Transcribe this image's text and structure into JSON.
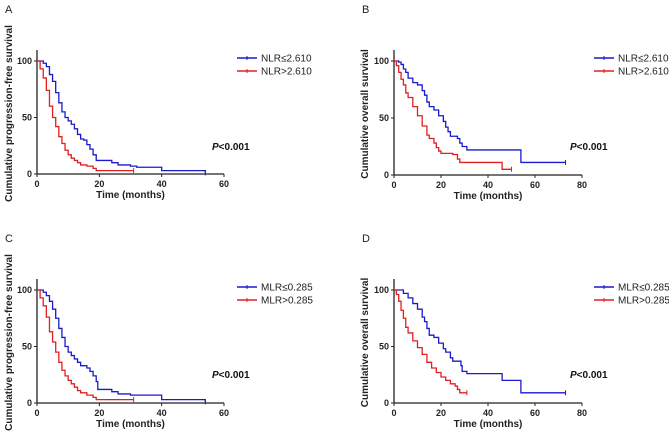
{
  "chart_data": [
    {
      "type": "line",
      "panel_label": "A",
      "xlabel": "Time (months)",
      "ylabel": "Cumulative progression-free survival",
      "xlim": [
        0,
        60
      ],
      "xticks": [
        0,
        20,
        40,
        60
      ],
      "ylim": [
        0,
        100
      ],
      "yticks": [
        0,
        50,
        100
      ],
      "p_value": {
        "prefix": "P",
        "text": "<0.001"
      },
      "legend_position": "top-right",
      "series": [
        {
          "name": "NLR≤2.610",
          "color": "#1a1acc",
          "steps": [
            [
              0,
              100
            ],
            [
              2,
              98
            ],
            [
              3,
              95
            ],
            [
              4,
              88
            ],
            [
              5,
              82
            ],
            [
              6,
              72
            ],
            [
              7,
              63
            ],
            [
              8,
              55
            ],
            [
              9,
              50
            ],
            [
              10,
              47
            ],
            [
              11,
              44
            ],
            [
              12,
              40
            ],
            [
              13,
              35
            ],
            [
              14,
              31
            ],
            [
              15,
              30
            ],
            [
              16,
              26
            ],
            [
              17,
              22
            ],
            [
              18,
              17
            ],
            [
              19,
              12
            ],
            [
              22,
              12
            ],
            [
              24,
              10
            ],
            [
              26,
              8
            ],
            [
              30,
              7
            ],
            [
              32,
              6
            ],
            [
              39,
              6
            ],
            [
              40,
              3
            ],
            [
              54,
              3
            ],
            [
              54,
              1
            ]
          ]
        },
        {
          "name": "NLR>2.610",
          "color": "#e02020",
          "steps": [
            [
              0,
              100
            ],
            [
              1,
              93
            ],
            [
              2,
              85
            ],
            [
              3,
              74
            ],
            [
              4,
              60
            ],
            [
              5,
              50
            ],
            [
              6,
              42
            ],
            [
              7,
              33
            ],
            [
              8,
              27
            ],
            [
              9,
              21
            ],
            [
              10,
              17
            ],
            [
              11,
              14
            ],
            [
              12,
              12
            ],
            [
              13,
              10
            ],
            [
              14,
              8
            ],
            [
              16,
              7
            ],
            [
              18,
              5
            ],
            [
              19,
              3
            ],
            [
              31,
              3
            ]
          ]
        }
      ]
    },
    {
      "type": "line",
      "panel_label": "B",
      "xlabel": "Time (months)",
      "ylabel": "Cumulative overall survival",
      "xlim": [
        0,
        80
      ],
      "xticks": [
        0,
        20,
        40,
        60,
        80
      ],
      "ylim": [
        0,
        100
      ],
      "yticks": [
        0,
        50,
        100
      ],
      "p_value": {
        "prefix": "P",
        "text": "<0.001"
      },
      "legend_position": "top-right",
      "series": [
        {
          "name": "NLR≤2.610",
          "color": "#1a1acc",
          "steps": [
            [
              0,
              100
            ],
            [
              2,
              99
            ],
            [
              3,
              97
            ],
            [
              4,
              93
            ],
            [
              5,
              90
            ],
            [
              6,
              85
            ],
            [
              8,
              81
            ],
            [
              10,
              79
            ],
            [
              12,
              74
            ],
            [
              13,
              70
            ],
            [
              14,
              64
            ],
            [
              15,
              60
            ],
            [
              17,
              57
            ],
            [
              19,
              52
            ],
            [
              21,
              47
            ],
            [
              22,
              42
            ],
            [
              23,
              38
            ],
            [
              24,
              34
            ],
            [
              27,
              32
            ],
            [
              28,
              28
            ],
            [
              29,
              25
            ],
            [
              31,
              22
            ],
            [
              54,
              22
            ],
            [
              54,
              11
            ],
            [
              73,
              11
            ]
          ]
        },
        {
          "name": "NLR>2.610",
          "color": "#e02020",
          "steps": [
            [
              0,
              100
            ],
            [
              1,
              96
            ],
            [
              2,
              90
            ],
            [
              3,
              84
            ],
            [
              4,
              79
            ],
            [
              5,
              72
            ],
            [
              6,
              68
            ],
            [
              8,
              60
            ],
            [
              10,
              52
            ],
            [
              12,
              43
            ],
            [
              14,
              35
            ],
            [
              15,
              32
            ],
            [
              17,
              28
            ],
            [
              18,
              24
            ],
            [
              19,
              21
            ],
            [
              20,
              19
            ],
            [
              25,
              18
            ],
            [
              27,
              14
            ],
            [
              28,
              11
            ],
            [
              46,
              11
            ],
            [
              46,
              5
            ],
            [
              50,
              5
            ]
          ]
        }
      ]
    },
    {
      "type": "line",
      "panel_label": "C",
      "xlabel": "Time (months)",
      "ylabel": "Cumulative progression-free survival",
      "xlim": [
        0,
        60
      ],
      "xticks": [
        0,
        20,
        40,
        60
      ],
      "ylim": [
        0,
        100
      ],
      "yticks": [
        0,
        50,
        100
      ],
      "p_value": {
        "prefix": "P",
        "text": "<0.001"
      },
      "legend_position": "top-right",
      "series": [
        {
          "name": "MLR≤0.285",
          "color": "#1a1acc",
          "steps": [
            [
              0,
              100
            ],
            [
              2,
              98
            ],
            [
              3,
              95
            ],
            [
              4,
              90
            ],
            [
              5,
              83
            ],
            [
              6,
              75
            ],
            [
              7,
              66
            ],
            [
              8,
              58
            ],
            [
              9,
              50
            ],
            [
              10,
              45
            ],
            [
              11,
              42
            ],
            [
              12,
              39
            ],
            [
              13,
              36
            ],
            [
              14,
              33
            ],
            [
              16,
              31
            ],
            [
              17,
              28
            ],
            [
              18,
              24
            ],
            [
              19,
              19
            ],
            [
              19.5,
              12
            ],
            [
              22,
              12
            ],
            [
              24,
              10
            ],
            [
              26,
              8
            ],
            [
              30,
              7
            ],
            [
              39,
              7
            ],
            [
              40,
              3
            ],
            [
              54,
              3
            ],
            [
              54,
              1
            ]
          ]
        },
        {
          "name": "MLR>0.285",
          "color": "#e02020",
          "steps": [
            [
              0,
              100
            ],
            [
              1,
              93
            ],
            [
              2,
              86
            ],
            [
              3,
              76
            ],
            [
              4,
              63
            ],
            [
              5,
              54
            ],
            [
              6,
              45
            ],
            [
              7,
              36
            ],
            [
              8,
              29
            ],
            [
              9,
              24
            ],
            [
              10,
              20
            ],
            [
              11,
              17
            ],
            [
              12,
              14
            ],
            [
              13,
              11
            ],
            [
              14,
              9
            ],
            [
              16,
              7
            ],
            [
              18,
              5
            ],
            [
              19,
              3
            ],
            [
              31,
              3
            ]
          ]
        }
      ]
    },
    {
      "type": "line",
      "panel_label": "D",
      "xlabel": "Time (months)",
      "ylabel": "Cumulative overall survival",
      "xlim": [
        0,
        80
      ],
      "xticks": [
        0,
        20,
        40,
        60,
        80
      ],
      "ylim": [
        0,
        100
      ],
      "yticks": [
        0,
        50,
        100
      ],
      "p_value": {
        "prefix": "P",
        "text": "<0.001"
      },
      "legend_position": "top-right",
      "series": [
        {
          "name": "MLR≤0.285",
          "color": "#1a1acc",
          "steps": [
            [
              0,
              100
            ],
            [
              3,
              100
            ],
            [
              4,
              97
            ],
            [
              6,
              93
            ],
            [
              8,
              88
            ],
            [
              10,
              83
            ],
            [
              12,
              76
            ],
            [
              13,
              72
            ],
            [
              14,
              66
            ],
            [
              15,
              60
            ],
            [
              17,
              58
            ],
            [
              19,
              53
            ],
            [
              21,
              48
            ],
            [
              22,
              45
            ],
            [
              24,
              40
            ],
            [
              25,
              37
            ],
            [
              28,
              37
            ],
            [
              28.5,
              33
            ],
            [
              29,
              28
            ],
            [
              31,
              26
            ],
            [
              46,
              26
            ],
            [
              46,
              20
            ],
            [
              54,
              20
            ],
            [
              54,
              9
            ],
            [
              73,
              9
            ]
          ]
        },
        {
          "name": "MLR>0.285",
          "color": "#e02020",
          "steps": [
            [
              0,
              100
            ],
            [
              1,
              96
            ],
            [
              2,
              90
            ],
            [
              3,
              82
            ],
            [
              4,
              75
            ],
            [
              5,
              67
            ],
            [
              6,
              62
            ],
            [
              8,
              55
            ],
            [
              10,
              49
            ],
            [
              12,
              43
            ],
            [
              14,
              36
            ],
            [
              16,
              31
            ],
            [
              18,
              27
            ],
            [
              20,
              23
            ],
            [
              22,
              20
            ],
            [
              24,
              17
            ],
            [
              26,
              15
            ],
            [
              27,
              12
            ],
            [
              28,
              9
            ],
            [
              31,
              9
            ]
          ]
        }
      ]
    }
  ]
}
